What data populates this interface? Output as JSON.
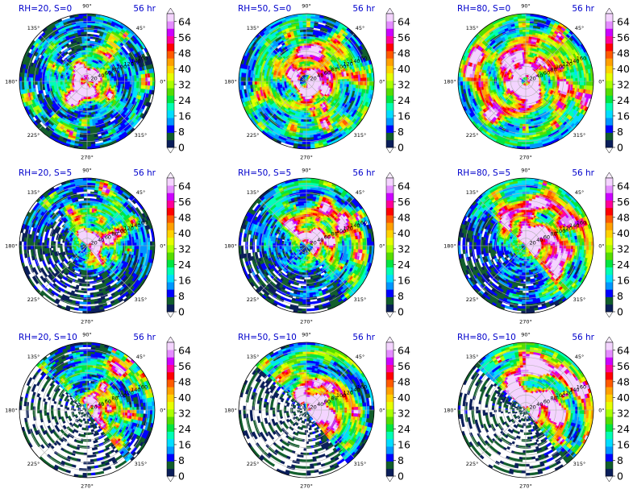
{
  "chart_data": {
    "type": "polar-heatmap",
    "panels": [
      {
        "title": "RH=20, S=0",
        "time": "56 hr",
        "rh": 20,
        "s": 0
      },
      {
        "title": "RH=50, S=0",
        "time": "56 hr",
        "rh": 50,
        "s": 0
      },
      {
        "title": "RH=80, S=0",
        "time": "56 hr",
        "rh": 80,
        "s": 0
      },
      {
        "title": "RH=20, S=5",
        "time": "56 hr",
        "rh": 20,
        "s": 5
      },
      {
        "title": "RH=50, S=5",
        "time": "56 hr",
        "rh": 50,
        "s": 5
      },
      {
        "title": "RH=80, S=5",
        "time": "56 hr",
        "rh": 80,
        "s": 5
      },
      {
        "title": "RH=20, S=10",
        "time": "56 hr",
        "rh": 20,
        "s": 10
      },
      {
        "title": "RH=50, S=10",
        "time": "56 hr",
        "rh": 50,
        "s": 10
      },
      {
        "title": "RH=80, S=10",
        "time": "56 hr",
        "rh": 80,
        "s": 10
      }
    ],
    "angle_ticks": [
      "90°",
      "45°",
      "0°",
      "315°",
      "270°",
      "225°",
      "180°",
      "135°"
    ],
    "angle_values": [
      90,
      45,
      0,
      315,
      270,
      225,
      180,
      135
    ],
    "radial_ticks": [
      "20",
      "40",
      "60",
      "80",
      "100",
      "120",
      "140",
      "160"
    ],
    "radial_values": [
      20,
      40,
      60,
      80,
      100,
      120,
      140,
      160
    ],
    "r_max": 180,
    "colorbar": {
      "ticks": [
        "0",
        "8",
        "16",
        "24",
        "32",
        "40",
        "48",
        "56",
        "64"
      ],
      "tick_values": [
        0,
        8,
        16,
        24,
        32,
        40,
        48,
        56,
        64
      ],
      "levels": [
        0,
        4,
        8,
        12,
        16,
        20,
        24,
        28,
        32,
        36,
        40,
        44,
        48,
        52,
        56,
        60,
        64,
        68
      ],
      "colors": [
        "#0a1e5a",
        "#115e2c",
        "#0000ff",
        "#0096ff",
        "#00ddff",
        "#00ffb4",
        "#00e640",
        "#55dd00",
        "#aaff00",
        "#e6ff00",
        "#ffd200",
        "#ffa000",
        "#ff5a00",
        "#ff0000",
        "#ff0099",
        "#cc00ff",
        "#e48cff",
        "#f4d4ff"
      ],
      "extend": "both"
    }
  }
}
